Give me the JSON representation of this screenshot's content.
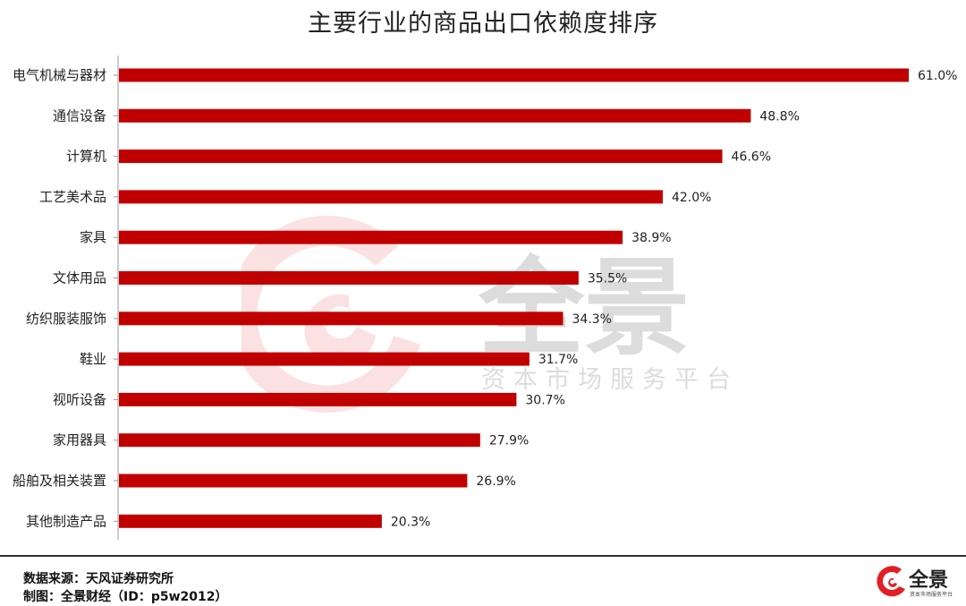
{
  "chart_data": {
    "type": "bar",
    "orientation": "horizontal",
    "title": "主要行业的商品出口依赖度排序",
    "categories": [
      "电气机械与器材",
      "通信设备",
      "计算机",
      "工艺美术品",
      "家具",
      "文体用品",
      "纺织服装服饰",
      "鞋业",
      "视听设备",
      "家用器具",
      "船舶及相关装置",
      "其他制造产品"
    ],
    "values": [
      61.0,
      48.8,
      46.6,
      42.0,
      38.9,
      35.5,
      34.3,
      31.7,
      30.7,
      27.9,
      26.9,
      20.3
    ],
    "value_suffix": "%",
    "xlim": [
      0,
      61
    ],
    "bar_color": "#c00000",
    "grid": false,
    "legend": "none"
  },
  "watermark": {
    "brand": "全景",
    "tagline": "资本市场服务平台"
  },
  "footer": {
    "source": "数据来源：天风证券研究所",
    "credit": "制图：全景财经（ID：p5w2012）"
  },
  "logo": {
    "brand": "全景",
    "tagline": "资本市场服务平台"
  },
  "colors": {
    "accent": "#c00000",
    "watermark": "#e31e24"
  }
}
